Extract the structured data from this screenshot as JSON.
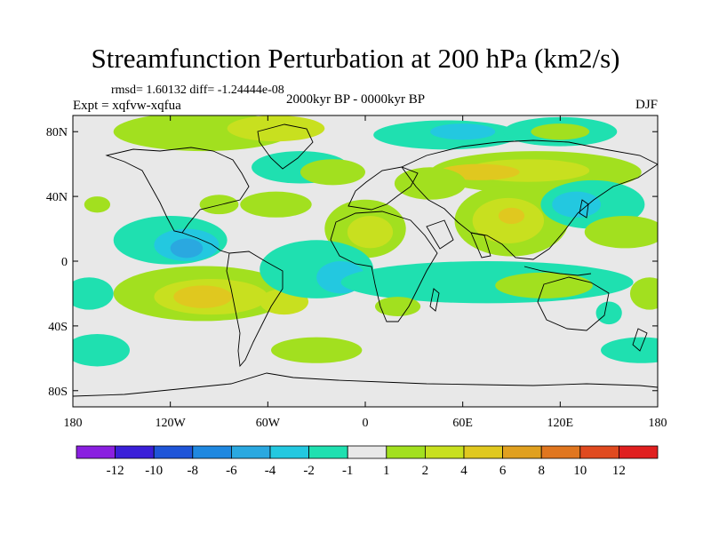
{
  "chart_data": {
    "type": "contour-map",
    "title": "Streamfunction Perturbation at 200 hPa (km2/s)",
    "stats_text": "rmsd= 1.60132 diff= -1.24444e-08",
    "experiment_label": "Expt = xqfvw-xqfua",
    "period_label": "2000kyr BP - 0000kyr BP",
    "season_label": "DJF",
    "x_tick_labels": [
      "180",
      "120W",
      "60W",
      "0",
      "60E",
      "120E",
      "180"
    ],
    "y_tick_labels": [
      "80N",
      "40N",
      "0",
      "40S",
      "80S"
    ],
    "xlim": [
      -180,
      180
    ],
    "ylim": [
      -90,
      90
    ],
    "colorbar": {
      "tick_labels": [
        "-12",
        "-10",
        "-8",
        "-6",
        "-4",
        "-2",
        "-1",
        "1",
        "2",
        "4",
        "6",
        "8",
        "10",
        "12"
      ],
      "colors": [
        "#8a1fe0",
        "#3a1fd8",
        "#1f55d8",
        "#1f88e0",
        "#2aa8e0",
        "#23c8e0",
        "#1fe0b0",
        "#e8e8e8",
        "#a2e01f",
        "#c8e01f",
        "#e0c81f",
        "#e0a01f",
        "#e0761f",
        "#e04a1f",
        "#e01f1f"
      ]
    },
    "anomalies": [
      {
        "lon": -100,
        "lat": 80,
        "rx": 55,
        "ry": 12,
        "value": 1.5
      },
      {
        "lon": -55,
        "lat": 82,
        "rx": 30,
        "ry": 8,
        "value": 2.5
      },
      {
        "lon": -40,
        "lat": 58,
        "rx": 30,
        "ry": 10,
        "value": -1.5
      },
      {
        "lon": -20,
        "lat": 55,
        "rx": 20,
        "ry": 8,
        "value": 1.5
      },
      {
        "lon": 50,
        "lat": 78,
        "rx": 45,
        "ry": 9,
        "value": -1.5
      },
      {
        "lon": 60,
        "lat": 80,
        "rx": 20,
        "ry": 5,
        "value": -3
      },
      {
        "lon": 120,
        "lat": 80,
        "rx": 35,
        "ry": 9,
        "value": -1.5
      },
      {
        "lon": 120,
        "lat": 80,
        "rx": 18,
        "ry": 5,
        "value": 1.5
      },
      {
        "lon": 105,
        "lat": 55,
        "rx": 65,
        "ry": 13,
        "value": 1.5
      },
      {
        "lon": 100,
        "lat": 56,
        "rx": 38,
        "ry": 7,
        "value": 2.5
      },
      {
        "lon": 70,
        "lat": 55,
        "rx": 25,
        "ry": 5,
        "value": 4
      },
      {
        "lon": 40,
        "lat": 48,
        "rx": 22,
        "ry": 10,
        "value": 1.5
      },
      {
        "lon": 90,
        "lat": 25,
        "rx": 35,
        "ry": 22,
        "value": 1.5
      },
      {
        "lon": 88,
        "lat": 25,
        "rx": 22,
        "ry": 14,
        "value": 2.5
      },
      {
        "lon": 90,
        "lat": 28,
        "rx": 8,
        "ry": 5,
        "value": 5
      },
      {
        "lon": 140,
        "lat": 35,
        "rx": 32,
        "ry": 15,
        "value": -1.5
      },
      {
        "lon": 130,
        "lat": 35,
        "rx": 15,
        "ry": 8,
        "value": -3
      },
      {
        "lon": 160,
        "lat": 18,
        "rx": 25,
        "ry": 10,
        "value": 1.5
      },
      {
        "lon": -90,
        "lat": 35,
        "rx": 12,
        "ry": 6,
        "value": 1.5
      },
      {
        "lon": -55,
        "lat": 35,
        "rx": 22,
        "ry": 8,
        "value": 1.5
      },
      {
        "lon": -165,
        "lat": 35,
        "rx": 8,
        "ry": 5,
        "value": 1.5
      },
      {
        "lon": 0,
        "lat": 20,
        "rx": 25,
        "ry": 18,
        "value": 1.5
      },
      {
        "lon": 3,
        "lat": 18,
        "rx": 14,
        "ry": 10,
        "value": 2.5
      },
      {
        "lon": -120,
        "lat": 13,
        "rx": 35,
        "ry": 15,
        "value": -1.5
      },
      {
        "lon": -110,
        "lat": 10,
        "rx": 20,
        "ry": 10,
        "value": -3
      },
      {
        "lon": -110,
        "lat": 8,
        "rx": 10,
        "ry": 6,
        "value": -5
      },
      {
        "lon": -100,
        "lat": -20,
        "rx": 55,
        "ry": 17,
        "value": 1.5
      },
      {
        "lon": -95,
        "lat": -22,
        "rx": 35,
        "ry": 11,
        "value": 2.5
      },
      {
        "lon": -100,
        "lat": -22,
        "rx": 18,
        "ry": 7,
        "value": 4
      },
      {
        "lon": -100,
        "lat": -22,
        "rx": 8,
        "ry": 4,
        "value": 5
      },
      {
        "lon": -50,
        "lat": -25,
        "rx": 15,
        "ry": 8,
        "value": 2.5
      },
      {
        "lon": -30,
        "lat": -5,
        "rx": 35,
        "ry": 18,
        "value": -1.5
      },
      {
        "lon": -15,
        "lat": -10,
        "rx": 15,
        "ry": 10,
        "value": -3
      },
      {
        "lon": 75,
        "lat": -13,
        "rx": 90,
        "ry": 13,
        "value": -1.5
      },
      {
        "lon": 20,
        "lat": -28,
        "rx": 14,
        "ry": 6,
        "value": 1.5
      },
      {
        "lon": 110,
        "lat": -15,
        "rx": 30,
        "ry": 8,
        "value": 1.5
      },
      {
        "lon": 150,
        "lat": -32,
        "rx": 8,
        "ry": 7,
        "value": -1.5
      },
      {
        "lon": 175,
        "lat": -20,
        "rx": 12,
        "ry": 10,
        "value": 1.5
      },
      {
        "lon": -165,
        "lat": -55,
        "rx": 20,
        "ry": 10,
        "value": -1.5
      },
      {
        "lon": -30,
        "lat": -55,
        "rx": 28,
        "ry": 8,
        "value": 1.5
      },
      {
        "lon": 170,
        "lat": -55,
        "rx": 25,
        "ry": 8,
        "value": -1.5
      },
      {
        "lon": -170,
        "lat": -20,
        "rx": 15,
        "ry": 10,
        "value": -1.5
      }
    ]
  }
}
